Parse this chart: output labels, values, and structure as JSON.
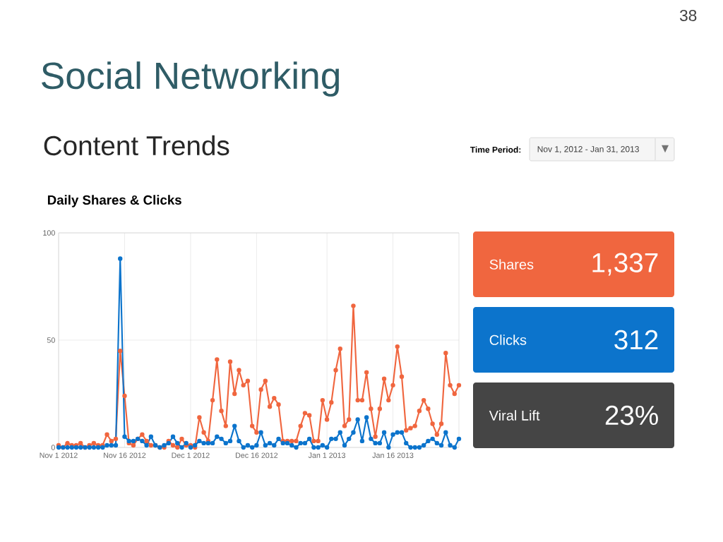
{
  "chart_data": [
    {
      "type": "line",
      "title": "Daily Shares & Clicks",
      "x": [
        "2012-11-01",
        "2012-11-02",
        "2012-11-03",
        "2012-11-04",
        "2012-11-05",
        "2012-11-06",
        "2012-11-07",
        "2012-11-08",
        "2012-11-09",
        "2012-11-10",
        "2012-11-11",
        "2012-11-12",
        "2012-11-13",
        "2012-11-14",
        "2012-11-15",
        "2012-11-16",
        "2012-11-17",
        "2012-11-18",
        "2012-11-19",
        "2012-11-20",
        "2012-11-21",
        "2012-11-22",
        "2012-11-23",
        "2012-11-24",
        "2012-11-25",
        "2012-11-26",
        "2012-11-27",
        "2012-11-28",
        "2012-11-29",
        "2012-11-30",
        "2012-12-01",
        "2012-12-02",
        "2012-12-03",
        "2012-12-04",
        "2012-12-05",
        "2012-12-06",
        "2012-12-07",
        "2012-12-08",
        "2012-12-09",
        "2012-12-10",
        "2012-12-11",
        "2012-12-12",
        "2012-12-13",
        "2012-12-14",
        "2012-12-15",
        "2012-12-16",
        "2012-12-17",
        "2012-12-18",
        "2012-12-19",
        "2012-12-20",
        "2012-12-21",
        "2012-12-22",
        "2012-12-23",
        "2012-12-24",
        "2012-12-25",
        "2012-12-26",
        "2012-12-27",
        "2012-12-28",
        "2012-12-29",
        "2012-12-30",
        "2012-12-31",
        "2013-01-01",
        "2013-01-02",
        "2013-01-03",
        "2013-01-04",
        "2013-01-05",
        "2013-01-06",
        "2013-01-07",
        "2013-01-08",
        "2013-01-09",
        "2013-01-10",
        "2013-01-11",
        "2013-01-12",
        "2013-01-13",
        "2013-01-14",
        "2013-01-15",
        "2013-01-16",
        "2013-01-17",
        "2013-01-18",
        "2013-01-19",
        "2013-01-20",
        "2013-01-21",
        "2013-01-22",
        "2013-01-23",
        "2013-01-24",
        "2013-01-25",
        "2013-01-26",
        "2013-01-27",
        "2013-01-28",
        "2013-01-29",
        "2013-01-30",
        "2013-01-31"
      ],
      "series": [
        {
          "name": "Shares",
          "color": "#f0663f",
          "values": [
            1,
            0,
            2,
            1,
            1,
            2,
            0,
            1,
            2,
            1,
            1,
            6,
            3,
            4,
            45,
            24,
            2,
            1,
            4,
            6,
            3,
            1,
            1,
            0,
            0,
            3,
            1,
            0,
            4,
            1,
            1,
            0,
            14,
            7,
            3,
            22,
            41,
            17,
            10,
            40,
            25,
            36,
            29,
            31,
            10,
            7,
            27,
            31,
            19,
            23,
            20,
            3,
            3,
            3,
            3,
            10,
            16,
            15,
            3,
            3,
            22,
            13,
            21,
            36,
            46,
            10,
            13,
            66,
            22,
            22,
            35,
            18,
            5,
            18,
            32,
            22,
            29,
            47,
            33,
            8,
            9,
            10,
            17,
            22,
            18,
            11,
            6,
            11,
            44,
            29,
            25,
            29
          ]
        },
        {
          "name": "Clicks",
          "color": "#0c74cc",
          "values": [
            0,
            0,
            0,
            0,
            0,
            0,
            0,
            0,
            0,
            0,
            0,
            1,
            1,
            1,
            88,
            5,
            3,
            3,
            4,
            3,
            1,
            5,
            1,
            0,
            1,
            2,
            5,
            2,
            0,
            2,
            0,
            1,
            3,
            2,
            2,
            2,
            5,
            4,
            2,
            3,
            10,
            3,
            0,
            1,
            0,
            1,
            7,
            1,
            2,
            1,
            4,
            2,
            2,
            1,
            0,
            2,
            2,
            4,
            0,
            0,
            1,
            0,
            4,
            4,
            7,
            1,
            4,
            7,
            13,
            3,
            14,
            4,
            2,
            2,
            7,
            0,
            6,
            7,
            7,
            2,
            0,
            0,
            0,
            1,
            3,
            4,
            2,
            1,
            7,
            1,
            0,
            4
          ]
        }
      ],
      "xlim": [
        "2012-11-01",
        "2013-01-31"
      ],
      "xticks": [
        {
          "value": "2012-11-01",
          "label": "Nov 1 2012"
        },
        {
          "value": "2012-11-16",
          "label": "Nov 16 2012"
        },
        {
          "value": "2012-12-01",
          "label": "Dec 1 2012"
        },
        {
          "value": "2012-12-16",
          "label": "Dec 16 2012"
        },
        {
          "value": "2013-01-01",
          "label": "Jan 1 2013"
        },
        {
          "value": "2013-01-16",
          "label": "Jan 16 2013"
        }
      ],
      "ylim": [
        0,
        100
      ],
      "yticks": [
        0,
        50,
        100
      ],
      "grid": true,
      "marker": "circle",
      "line_style": "solid"
    },
    {
      "type": "other",
      "title": "Social Networking",
      "subtitle": "Content Trends",
      "annotations": [
        "38",
        "Time Period:",
        "Nov 1, 2012 - Jan 31, 2013",
        "1,337",
        "312",
        "Viral Lift",
        "23%"
      ]
    }
  ]
}
